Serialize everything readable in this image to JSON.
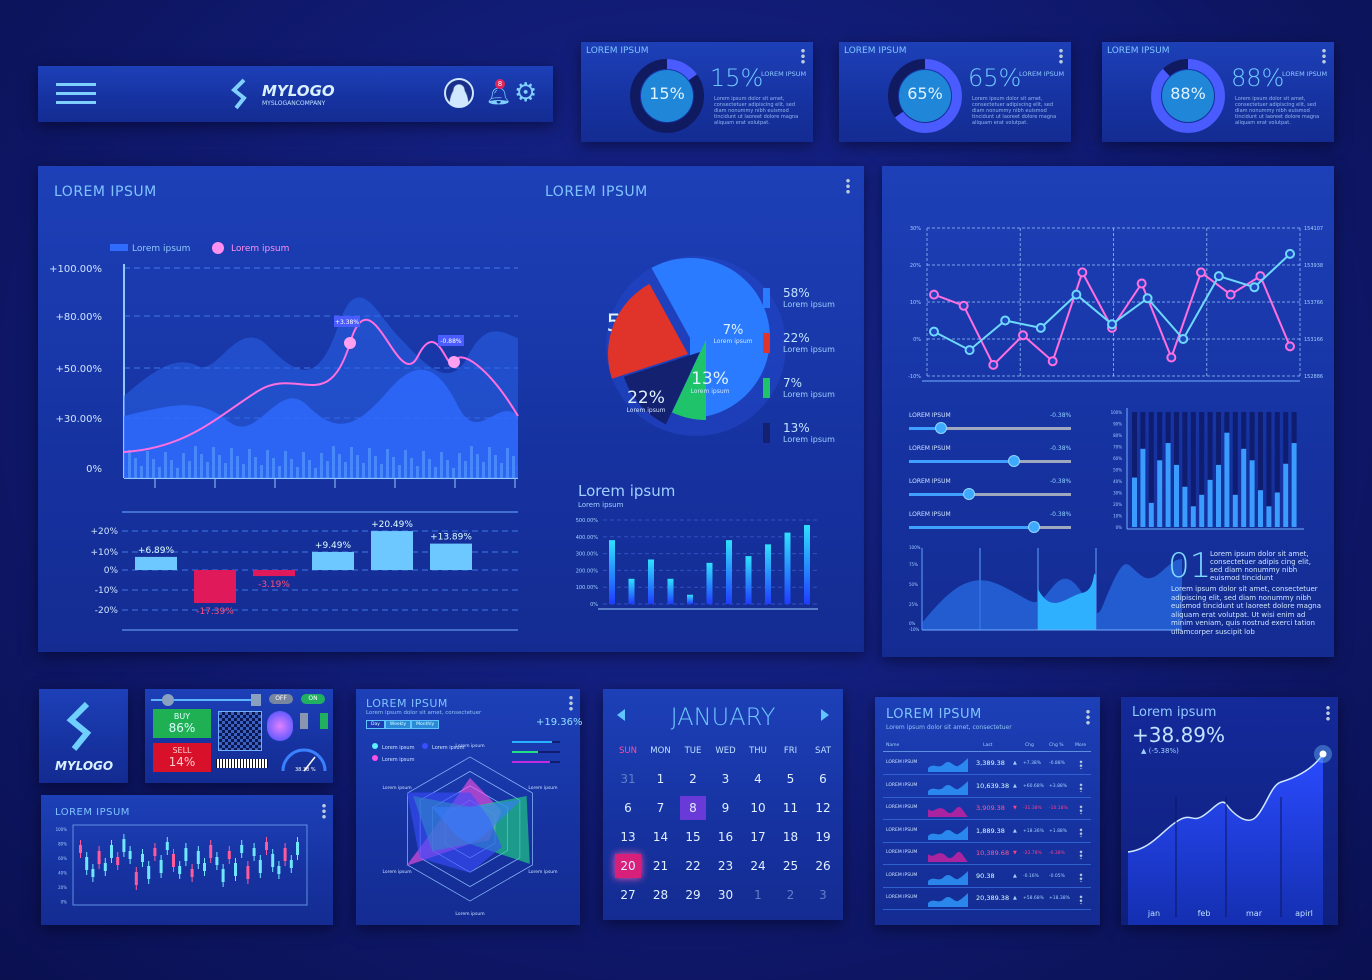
{
  "header": {
    "brand": "MYLOGO",
    "slogan": "MYSLOGANCOMPANY",
    "notification_count": "8",
    "icons": [
      "menu-icon",
      "logo-icon",
      "user-avatar-icon",
      "bell-icon",
      "gear-icon"
    ]
  },
  "kpis": [
    {
      "title": "LOREM IPSUM",
      "value": "15%",
      "percent": 15,
      "label": "LOREM IPSUM",
      "text": "Lorem ipsum dolor sit amet, consectetuer adipiscing elit, sed diam nonummy nibh euismod tincidunt ut laoreet dolore magna aliquam erat volutpat."
    },
    {
      "title": "LOREM IPSUM",
      "value": "65%",
      "percent": 65,
      "label": "LOREM IPSUM",
      "text": "Lorem ipsum dolor sit amet, consectetuer adipiscing elit, sed diam nonummy nibh euismod tincidunt ut laoreet dolore magna aliquam erat volutpat."
    },
    {
      "title": "LOREM IPSUM",
      "value": "88%",
      "percent": 88,
      "label": "LOREM IPSUM",
      "text": "Lorem ipsum dolor sit amet, consectetuer adipiscing elit, sed diam nonummy nibh euismod tincidunt ut laoreet dolore magna aliquam erat volutpat."
    }
  ],
  "main": {
    "title_left": "LOREM IPSUM",
    "title_right": "LOREM IPSUM"
  },
  "chart_data": [
    {
      "type": "area",
      "legend": [
        "Lorem ipsum",
        "Lorem ipsum"
      ],
      "ytick_labels": [
        "+100.00%",
        "+80.00%",
        "+50.00%",
        "+30.00%",
        "0%"
      ],
      "annotations": [
        "+3.38%",
        "-0.88%"
      ],
      "colors": {
        "area": "#2f6bff",
        "line": "#ff6fe0"
      }
    },
    {
      "type": "bar",
      "ytick_labels": [
        "+20%",
        "+10%",
        "0%",
        "-10%",
        "-20%"
      ],
      "values": [
        6.89,
        -17.39,
        -3.19,
        9.49,
        20.49,
        13.89
      ],
      "labels": [
        "+6.89%",
        "-17.39%",
        "-3.19%",
        "+9.49%",
        "+20.49%",
        "+13.89%"
      ],
      "ylim": [
        -20,
        20
      ],
      "colors": {
        "pos": "#6cc8ff",
        "neg": "#e01a5a"
      }
    },
    {
      "type": "pie",
      "values": [
        58,
        7,
        13,
        22
      ],
      "labels": [
        "58%",
        "7%",
        "13%",
        "22%"
      ],
      "sub": "Lorem ipsum",
      "legend": [
        {
          "value": "58%",
          "name": "Lorem ipsum",
          "color": "#2a7bff"
        },
        {
          "value": "22%",
          "name": "Lorem ipsum",
          "color": "#e0342a"
        },
        {
          "value": "7%",
          "name": "Lorem ipsum",
          "color": "#1fc46a"
        },
        {
          "value": "13%",
          "name": "Lorem ipsum",
          "color": "#142070"
        }
      ]
    },
    {
      "type": "bar",
      "title": "Lorem ipsum",
      "subtitle": "Lorem ipsum",
      "ytick_labels": [
        "500.00%",
        "400.00%",
        "300.00%",
        "200.00%",
        "100.00%",
        "0%"
      ],
      "ylim": [
        0,
        500
      ],
      "values": [
        380,
        150,
        265,
        150,
        55,
        245,
        380,
        285,
        355,
        425,
        470
      ]
    },
    {
      "type": "line",
      "left_ticks": [
        "30%",
        "20%",
        "10%",
        "0%",
        "-10%"
      ],
      "right_ticks": [
        "154107",
        "153938",
        "153766",
        "153166",
        "152886"
      ],
      "ylim": [
        -10,
        30
      ],
      "series": [
        {
          "color": "#ff6fe0",
          "values": [
            12,
            9,
            -7,
            1,
            -6,
            18,
            3,
            15,
            -5,
            18,
            12,
            17,
            -2
          ]
        },
        {
          "color": "#6fd8ff",
          "values": [
            2,
            -3,
            5,
            3,
            12,
            4,
            11,
            0,
            17,
            14,
            23
          ]
        }
      ]
    },
    {
      "type": "bar",
      "ytick_labels": [
        "100%",
        "90%",
        "80%",
        "70%",
        "60%",
        "50%",
        "40%",
        "30%",
        "20%",
        "10%",
        "0%"
      ],
      "ylim": [
        0,
        100
      ],
      "values": [
        43,
        68,
        21,
        58,
        73,
        54,
        35,
        18,
        28,
        41,
        54,
        82,
        28,
        68,
        58,
        32,
        18,
        30,
        55,
        73
      ]
    },
    {
      "type": "area",
      "ytick_labels": [
        "100%",
        "75%",
        "50%",
        "25%",
        "0%",
        "-10%"
      ]
    },
    {
      "type": "area",
      "title": "Lorem ipsum",
      "value": "+38.89%",
      "change": "(-5.38%)",
      "categories": [
        "jan",
        "feb",
        "mar",
        "apirl"
      ]
    }
  ],
  "sliders": [
    {
      "label": "LOREM IPSUM",
      "value": "-0.38%",
      "level": 0.2
    },
    {
      "label": "LOREM IPSUM",
      "value": "-0.38%",
      "level": 0.65
    },
    {
      "label": "LOREM IPSUM",
      "value": "-0.38%",
      "level": 0.37
    },
    {
      "label": "LOREM IPSUM",
      "value": "-0.38%",
      "level": 0.77
    }
  ],
  "info": {
    "number": "01",
    "short": "Lorem ipsum dolor sit amet, consectetuer adipis cing elit, sed diam nonummy nibh euismod tincidunt",
    "long": "Lorem ipsum dolor sit amet, consectetuer adipiscing elit, sed diam nonummy nibh euismod tincidunt ut laoreet dolore magna aliquam erat volutpat. Ut wisi enim ad minim veniam, quis nostrud exerci tation ullamcorper suscipit lob"
  },
  "logo_tile": {
    "brand": "MYLOGO"
  },
  "trading": {
    "buy": "BUY",
    "buy_value": "86%",
    "sell": "SELL",
    "sell_value": "14%",
    "off": "OFF",
    "on": "ON",
    "gauge": "38.38 %",
    "gauge_level": 0.38
  },
  "candles": {
    "title": "LOREM IPSUM",
    "ytick_labels": [
      "100%",
      "80%",
      "60%",
      "40%",
      "20%",
      "0%"
    ]
  },
  "radar": {
    "title": "LOREM IPSUM",
    "subtitle": "Lorem ipsum dolor sit amet, consectetuer",
    "tabs": [
      "Day",
      "Weekly",
      "Monthly"
    ],
    "value": "+19.36%",
    "legend": [
      "Lorem ipsum",
      "Lorem ipsum",
      "Lorem ipsum"
    ],
    "axes": [
      "Lorem ipsum",
      "Lorem ipsum",
      "Lorem ipsum",
      "Lorem ipsum",
      "Lorem ipsum",
      "Lorem ipsum"
    ],
    "colors": [
      "#5ff0ff",
      "#3a4dff",
      "#ff4fe6"
    ]
  },
  "calendar": {
    "month": "JANUARY",
    "days": [
      "SUN",
      "MON",
      "TUE",
      "WED",
      "THU",
      "FRI",
      "SAT"
    ],
    "weeks": [
      [
        "31",
        "1",
        "2",
        "3",
        "4",
        "5",
        "6"
      ],
      [
        "6",
        "7",
        "8",
        "9",
        "10",
        "11",
        "12"
      ],
      [
        "13",
        "14",
        "15",
        "16",
        "17",
        "18",
        "19"
      ],
      [
        "20",
        "21",
        "22",
        "23",
        "24",
        "25",
        "26"
      ],
      [
        "27",
        "28",
        "29",
        "30",
        "1",
        "2",
        "3"
      ]
    ],
    "selected": [
      "8",
      "20"
    ]
  },
  "table": {
    "title": "LOREM IPSUM",
    "subtitle": "Lorem ipsum dolor sit amet, consectetuer",
    "headers": [
      "Name",
      "Last",
      "Chg",
      "Chg %",
      "More"
    ],
    "rows": [
      {
        "name": "LOREM IPSUM",
        "last": "3,389.38",
        "chg": "+7.38%",
        "pct": "-0.88%",
        "dir": "up"
      },
      {
        "name": "LOREM IPSUM",
        "last": "10,639.38",
        "chg": "+60.68%",
        "pct": "+3.88%",
        "dir": "up"
      },
      {
        "name": "LOREM IPSUM",
        "last": "3,909.38",
        "chg": "-31.38%",
        "pct": "-10.18%",
        "dir": "down"
      },
      {
        "name": "LOREM IPSUM",
        "last": "1,889.38",
        "chg": "+18.36%",
        "pct": "+1.88%",
        "dir": "up"
      },
      {
        "name": "LOREM IPSUM",
        "last": "10,389.68",
        "chg": "-22.78%",
        "pct": "-0.38%",
        "dir": "down"
      },
      {
        "name": "LOREM IPSUM",
        "last": "90.38",
        "chg": "-0.16%",
        "pct": "-0.05%",
        "dir": "up"
      },
      {
        "name": "LOREM IPSUM",
        "last": "20,389.38",
        "chg": "+58.68%",
        "pct": "+18.38%",
        "dir": "up"
      }
    ]
  }
}
